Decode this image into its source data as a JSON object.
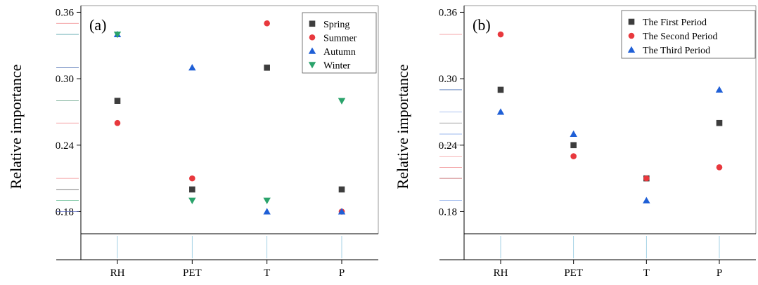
{
  "chart_data": [
    {
      "type": "scatter",
      "panel_label": "(a)",
      "title": "",
      "xlabel": "",
      "ylabel": "Relative importance",
      "categories": [
        "RH",
        "PET",
        "T",
        "P"
      ],
      "ylim": [
        0.16,
        0.366
      ],
      "yticks": [
        0.18,
        0.24,
        0.3,
        0.36
      ],
      "ytick_labels": [
        "0.18",
        "0.24",
        "0.30",
        "0.36"
      ],
      "grid": false,
      "legend_position": "top-right",
      "series": [
        {
          "name": "Spring",
          "marker": "square",
          "color": "#3d3d3d",
          "values": [
            0.28,
            0.2,
            0.31,
            0.2
          ]
        },
        {
          "name": "Summer",
          "marker": "circle",
          "color": "#e8383d",
          "values": [
            0.26,
            0.21,
            0.35,
            0.18
          ]
        },
        {
          "name": "Autumn",
          "marker": "triangle-up",
          "color": "#1f5fd6",
          "values": [
            0.34,
            0.31,
            0.18,
            0.18
          ]
        },
        {
          "name": "Winter",
          "marker": "triangle-down",
          "color": "#2aa36b",
          "values": [
            0.34,
            0.19,
            0.19,
            0.28
          ]
        }
      ]
    },
    {
      "type": "scatter",
      "panel_label": "(b)",
      "title": "",
      "xlabel": "",
      "ylabel": "Relative importance",
      "categories": [
        "RH",
        "PET",
        "T",
        "P"
      ],
      "ylim": [
        0.16,
        0.366
      ],
      "yticks": [
        0.18,
        0.24,
        0.3,
        0.36
      ],
      "ytick_labels": [
        "0.18",
        "0.24",
        "0.30",
        "0.36"
      ],
      "grid": false,
      "legend_position": "top-right",
      "series": [
        {
          "name": "The First Period",
          "marker": "square",
          "color": "#3d3d3d",
          "values": [
            0.29,
            0.24,
            0.21,
            0.26
          ]
        },
        {
          "name": "The Second Period",
          "marker": "circle",
          "color": "#e8383d",
          "values": [
            0.34,
            0.23,
            0.21,
            0.22
          ]
        },
        {
          "name": "The Third Period",
          "marker": "triangle-up",
          "color": "#1f5fd6",
          "values": [
            0.27,
            0.25,
            0.19,
            0.29
          ]
        }
      ]
    }
  ]
}
